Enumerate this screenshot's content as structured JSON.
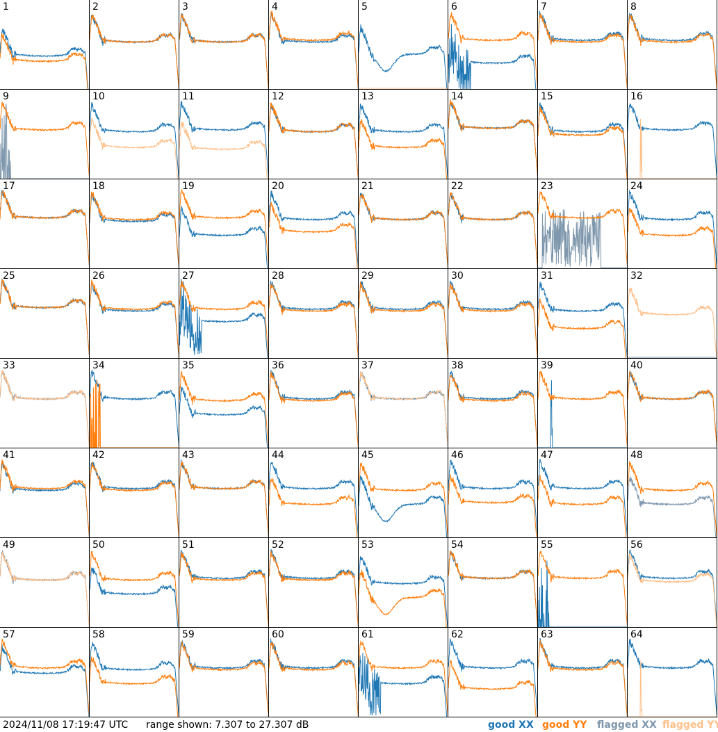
{
  "timestamp": "2024/11/08 17:19:47 UTC",
  "range_text": "range shown: 7.307 to 27.307 dB",
  "legend": {
    "good_xx": "good XX",
    "good_yy": "good YY",
    "flagged_xx": "flagged XX",
    "flagged_yy": "flagged YY"
  },
  "colors": {
    "good_xx": "#1f77b4",
    "good_yy": "#ff7f0e",
    "flagged_xx": "#7f98ad",
    "flagged_yy": "#ffc08a"
  },
  "chart_data": {
    "type": "line",
    "grid": "8x8 small multiples",
    "ylim": [
      7.307,
      27.307
    ],
    "y_unit": "dB",
    "panel_labels": [
      "1",
      "2",
      "3",
      "4",
      "5",
      "6",
      "7",
      "8",
      "9",
      "10",
      "11",
      "12",
      "13",
      "14",
      "15",
      "16",
      "17",
      "18",
      "19",
      "20",
      "21",
      "22",
      "23",
      "24",
      "25",
      "26",
      "27",
      "28",
      "29",
      "30",
      "31",
      "32",
      "33",
      "34",
      "35",
      "36",
      "37",
      "38",
      "39",
      "40",
      "41",
      "42",
      "43",
      "44",
      "45",
      "46",
      "47",
      "48",
      "49",
      "50",
      "51",
      "52",
      "53",
      "54",
      "55",
      "56",
      "57",
      "58",
      "59",
      "60",
      "61",
      "62",
      "63",
      "64"
    ],
    "panels": [
      {
        "xx": "good",
        "yy": "good",
        "xx_level": 12,
        "yy_level": 15,
        "xx_style": "wide"
      },
      {
        "xx": "good",
        "yy": "good",
        "xx_level": 4,
        "yy_level": 4
      },
      {
        "xx": "good",
        "yy": "good",
        "xx_level": 4,
        "yy_level": 4
      },
      {
        "xx": "good",
        "yy": "good",
        "xx_level": 4,
        "yy_level": 3
      },
      {
        "xx": "good",
        "yy": "flagged",
        "xx_level": 11,
        "xx_style": "dip",
        "yy_style": "flat_low"
      },
      {
        "xx": "good",
        "yy": "good",
        "xx_level": 16,
        "yy_level": 3,
        "xx_style": "bad_early"
      },
      {
        "xx": "good",
        "yy": "good",
        "xx_level": 3,
        "yy_level": 4
      },
      {
        "xx": "good",
        "yy": "good",
        "xx_level": 3,
        "yy_level": 4
      },
      {
        "xx": "flagged",
        "yy": "good",
        "yy_level": 3,
        "xx_style": "spikes_low"
      },
      {
        "xx": "good",
        "yy": "flagged",
        "xx_level": 4,
        "yy_level": 13
      },
      {
        "xx": "good",
        "yy": "flagged",
        "xx_level": 3,
        "yy_level": 14
      },
      {
        "xx": "good",
        "yy": "good",
        "xx_level": 4,
        "yy_level": 4
      },
      {
        "xx": "good",
        "yy": "good",
        "xx_level": 4,
        "yy_level": 13
      },
      {
        "xx": "good",
        "yy": "good",
        "xx_level": 2,
        "yy_level": 2
      },
      {
        "xx": "good",
        "yy": "good",
        "xx_level": 4,
        "yy_level": 6
      },
      {
        "xx": "good",
        "yy": "flagged",
        "xx_level": 3,
        "yy_style": "spike_low"
      },
      {
        "xx": "good",
        "yy": "good",
        "xx_level": 2,
        "yy_level": 2
      },
      {
        "xx": "good",
        "yy": "good",
        "xx_level": 4,
        "yy_level": 3
      },
      {
        "xx": "good",
        "yy": "good",
        "xx_level": 12,
        "yy_level": 2
      },
      {
        "xx": "good",
        "yy": "good",
        "xx_level": 3,
        "yy_level": 10
      },
      {
        "xx": "good",
        "yy": "good",
        "xx_level": 3,
        "yy_level": 3
      },
      {
        "xx": "good",
        "yy": "good",
        "xx_level": 3,
        "yy_level": 3
      },
      {
        "xx": "flagged",
        "yy": "good",
        "yy_level": 2,
        "xx_style": "noise_low"
      },
      {
        "xx": "good",
        "yy": "good",
        "xx_level": 3,
        "yy_level": 12
      },
      {
        "xx": "good",
        "yy": "good",
        "xx_level": 2,
        "yy_level": 2
      },
      {
        "xx": "good",
        "yy": "good",
        "xx_level": 4,
        "yy_level": 3
      },
      {
        "xx": "good",
        "yy": "good",
        "xx_level": 10,
        "yy_level": 3,
        "xx_style": "bad_early"
      },
      {
        "xx": "good",
        "yy": "good",
        "xx_level": 3,
        "yy_level": 4
      },
      {
        "xx": "good",
        "yy": "good",
        "xx_level": 3,
        "yy_level": 4
      },
      {
        "xx": "good",
        "yy": "good",
        "xx_level": 3,
        "yy_level": 4
      },
      {
        "xx": "good",
        "yy": "good",
        "xx_level": 4,
        "yy_level": 14
      },
      {
        "xx": "flagged",
        "yy": "flagged",
        "yy_level": 6,
        "xx_style": "flat_low"
      },
      {
        "xx": "flagged",
        "yy": "flagged",
        "xx_level": 3,
        "yy_level": 3
      },
      {
        "xx": "good",
        "yy": "good",
        "xx_level": 3,
        "yy_style": "spikes_low"
      },
      {
        "xx": "good",
        "yy": "good",
        "xx_level": 12,
        "yy_level": 4
      },
      {
        "xx": "good",
        "yy": "good",
        "xx_level": 3,
        "yy_level": 4
      },
      {
        "xx": "good",
        "yy": "flagged",
        "xx_level": 3,
        "yy_level": 3
      },
      {
        "xx": "good",
        "yy": "good",
        "xx_level": 3,
        "yy_level": 4
      },
      {
        "xx": "good",
        "yy": "good",
        "xx_style": "spike_low",
        "yy_level": 3
      },
      {
        "xx": "good",
        "yy": "good",
        "xx_level": 3,
        "yy_level": 3
      },
      {
        "xx": "good",
        "yy": "good",
        "xx_level": 4,
        "yy_level": 3
      },
      {
        "xx": "good",
        "yy": "good",
        "xx_level": 3,
        "yy_level": 4
      },
      {
        "xx": "good",
        "yy": "good",
        "xx_level": 3,
        "yy_level": 3
      },
      {
        "xx": "good",
        "yy": "good",
        "xx_level": 3,
        "yy_level": 12
      },
      {
        "xx": "good",
        "yy": "good",
        "xx_level": 12,
        "yy_level": 4,
        "xx_style": "dip"
      },
      {
        "xx": "good",
        "yy": "good",
        "xx_level": 3,
        "yy_level": 11
      },
      {
        "xx": "good",
        "yy": "good",
        "xx_level": 3,
        "yy_level": 12
      },
      {
        "xx": "flagged",
        "yy": "good",
        "xx_level": 12,
        "yy_level": 4
      },
      {
        "xx": "flagged",
        "yy": "flagged",
        "xx_level": 4,
        "yy_level": 4
      },
      {
        "xx": "good",
        "yy": "good",
        "xx_level": 12,
        "yy_level": 4
      },
      {
        "xx": "good",
        "yy": "good",
        "xx_level": 3,
        "yy_level": 4
      },
      {
        "xx": "good",
        "yy": "good",
        "xx_level": 3,
        "yy_level": 4
      },
      {
        "xx": "good",
        "yy": "good",
        "xx_level": 6,
        "yy_level": 14,
        "yy_style": "dip"
      },
      {
        "xx": "good",
        "yy": "good",
        "xx_level": 3,
        "yy_level": 3
      },
      {
        "xx": "good",
        "yy": "good",
        "xx_style": "spikes_low",
        "yy_level": 3
      },
      {
        "xx": "good",
        "yy": "flagged",
        "xx_level": 3,
        "yy_level": 5
      },
      {
        "xx": "good",
        "yy": "good",
        "xx_level": 6,
        "yy_level": 3
      },
      {
        "xx": "good",
        "yy": "good",
        "xx_level": 4,
        "yy_level": 12
      },
      {
        "xx": "good",
        "yy": "good",
        "xx_level": 3,
        "yy_level": 4
      },
      {
        "xx": "good",
        "yy": "good",
        "xx_level": 3,
        "yy_level": 4
      },
      {
        "xx": "good",
        "yy": "good",
        "xx_level": 12,
        "yy_level": 3,
        "xx_style": "bad_early"
      },
      {
        "xx": "good",
        "yy": "good",
        "xx_level": 3,
        "yy_level": 15
      },
      {
        "xx": "good",
        "yy": "good",
        "xx_level": 3,
        "yy_level": 4
      },
      {
        "xx": "good",
        "yy": "flagged",
        "xx_level": 3,
        "yy_style": "spike_low"
      }
    ]
  }
}
